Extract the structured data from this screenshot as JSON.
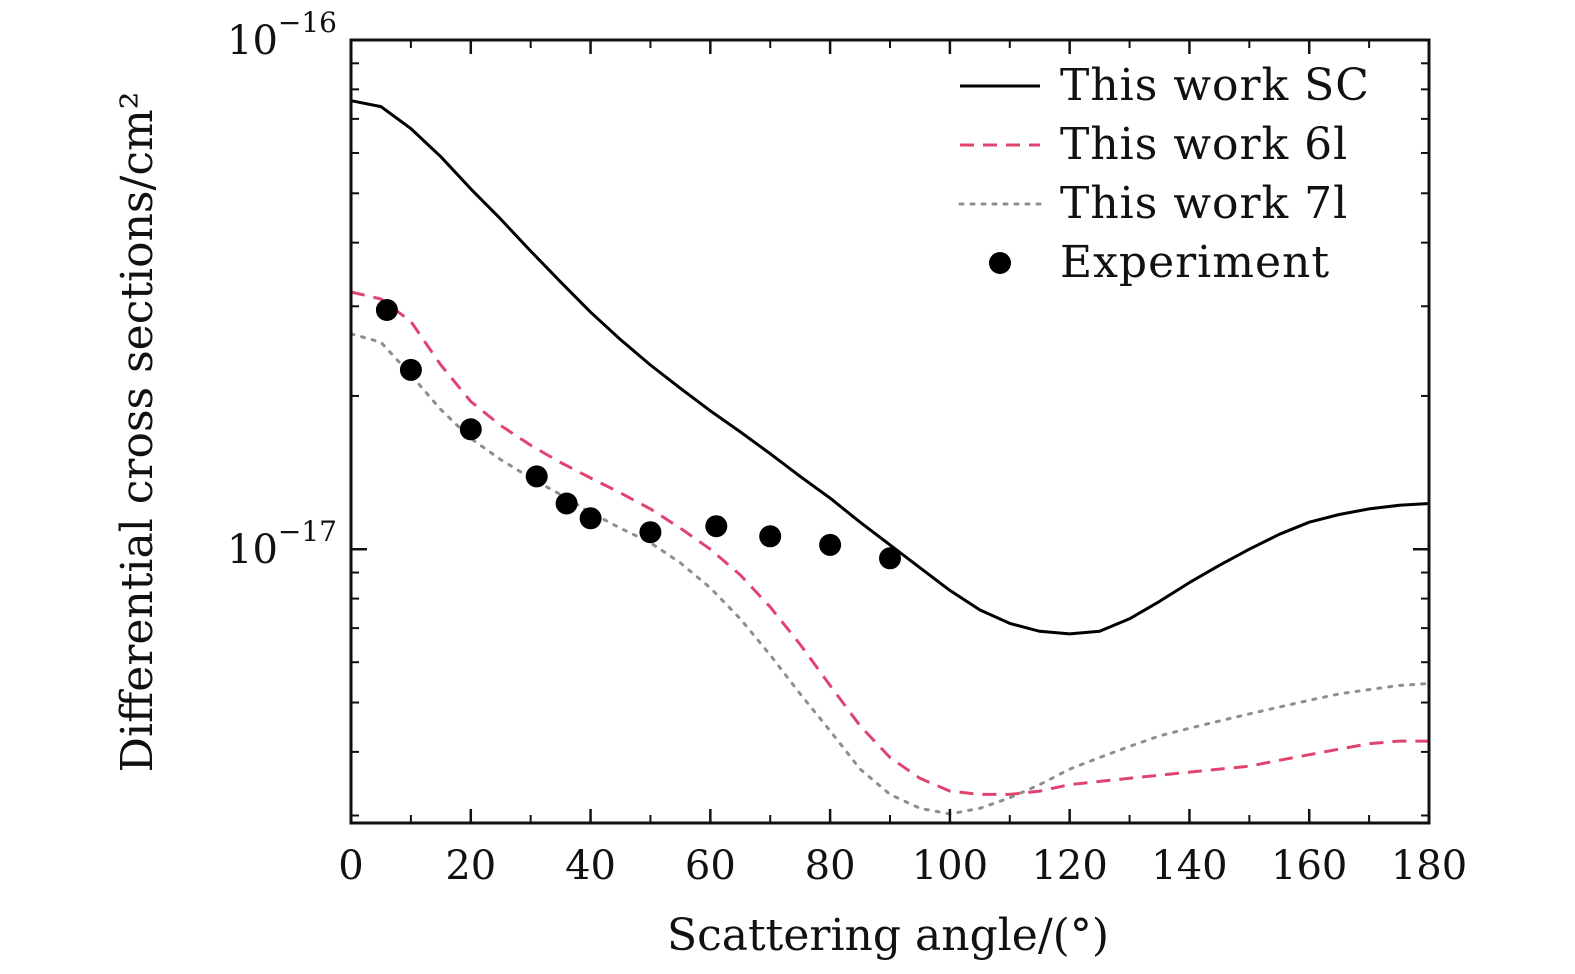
{
  "chart_data": {
    "type": "line",
    "title": "",
    "xlabel": "Scattering angle/(°)",
    "ylabel": "Differential cross sections/cm²",
    "xlim": [
      0,
      180
    ],
    "ylim": [
      2.9e-18,
      1e-16
    ],
    "yscale": "log",
    "x_ticks": [
      "0",
      "20",
      "40",
      "60",
      "80",
      "100",
      "120",
      "140",
      "160",
      "180"
    ],
    "y_ticks": [
      {
        "value": 1e-16,
        "base": "10",
        "exp": "−16"
      },
      {
        "value": 1e-17,
        "base": "10",
        "exp": "−17"
      }
    ],
    "grid": false,
    "legend": "top-right",
    "series": [
      {
        "name": "This work SC",
        "style": "solid",
        "color": "#000000",
        "x": [
          0,
          5,
          10,
          15,
          20,
          25,
          30,
          35,
          40,
          45,
          50,
          55,
          60,
          65,
          70,
          75,
          80,
          85,
          90,
          95,
          100,
          105,
          110,
          115,
          120,
          125,
          130,
          135,
          140,
          145,
          150,
          155,
          160,
          165,
          170,
          175,
          180
        ],
        "y": [
          7.6e-17,
          7.4e-17,
          6.7e-17,
          5.9e-17,
          5.1e-17,
          4.45e-17,
          3.85e-17,
          3.35e-17,
          2.92e-17,
          2.58e-17,
          2.3e-17,
          2.07e-17,
          1.87e-17,
          1.7e-17,
          1.54e-17,
          1.39e-17,
          1.26e-17,
          1.13e-17,
          1.02e-17,
          9.2e-18,
          8.3e-18,
          7.6e-18,
          7.15e-18,
          6.9e-18,
          6.82e-18,
          6.9e-18,
          7.3e-18,
          7.9e-18,
          8.6e-18,
          9.3e-18,
          1e-17,
          1.07e-17,
          1.13e-17,
          1.17e-17,
          1.2e-17,
          1.22e-17,
          1.23e-17
        ]
      },
      {
        "name": "This work 6l",
        "style": "dashed",
        "color": "#e0446e",
        "x": [
          0,
          5,
          10,
          15,
          20,
          25,
          30,
          35,
          40,
          45,
          50,
          55,
          60,
          65,
          70,
          75,
          80,
          85,
          90,
          95,
          100,
          105,
          110,
          115,
          120,
          125,
          130,
          135,
          140,
          145,
          150,
          155,
          160,
          165,
          170,
          175,
          180
        ],
        "y": [
          3.2e-17,
          3.1e-17,
          2.8e-17,
          2.3e-17,
          1.95e-17,
          1.75e-17,
          1.6e-17,
          1.48e-17,
          1.38e-17,
          1.29e-17,
          1.2e-17,
          1.1e-17,
          1e-17,
          8.9e-18,
          7.7e-18,
          6.5e-18,
          5.4e-18,
          4.5e-18,
          3.9e-18,
          3.55e-18,
          3.35e-18,
          3.3e-18,
          3.3e-18,
          3.35e-18,
          3.45e-18,
          3.5e-18,
          3.55e-18,
          3.6e-18,
          3.65e-18,
          3.7e-18,
          3.75e-18,
          3.85e-18,
          3.95e-18,
          4.05e-18,
          4.15e-18,
          4.2e-18,
          4.2e-18
        ]
      },
      {
        "name": "This work 7l",
        "style": "dotted",
        "color": "#8e8e8e",
        "x": [
          0,
          5,
          10,
          15,
          20,
          25,
          30,
          35,
          40,
          45,
          50,
          55,
          60,
          65,
          70,
          75,
          80,
          85,
          90,
          95,
          100,
          105,
          110,
          115,
          120,
          125,
          130,
          135,
          140,
          145,
          150,
          155,
          160,
          165,
          170,
          175,
          180
        ],
        "y": [
          2.65e-17,
          2.55e-17,
          2.2e-17,
          1.88e-17,
          1.65e-17,
          1.5e-17,
          1.38e-17,
          1.28e-17,
          1.18e-17,
          1.1e-17,
          1.03e-17,
          9.4e-18,
          8.4e-18,
          7.3e-18,
          6.2e-18,
          5.2e-18,
          4.4e-18,
          3.7e-18,
          3.3e-18,
          3.1e-18,
          3.02e-18,
          3.1e-18,
          3.25e-18,
          3.45e-18,
          3.7e-18,
          3.9e-18,
          4.1e-18,
          4.3e-18,
          4.45e-18,
          4.6e-18,
          4.75e-18,
          4.9e-18,
          5.05e-18,
          5.2e-18,
          5.3e-18,
          5.4e-18,
          5.45e-18
        ]
      },
      {
        "name": "Experiment",
        "style": "markers",
        "color": "#000000",
        "x": [
          6,
          10,
          20,
          31,
          36,
          40,
          50,
          61,
          70,
          80,
          90
        ],
        "y": [
          2.95e-17,
          2.25e-17,
          1.72e-17,
          1.39e-17,
          1.23e-17,
          1.15e-17,
          1.08e-17,
          1.11e-17,
          1.06e-17,
          1.02e-17,
          9.6e-18
        ]
      }
    ]
  }
}
